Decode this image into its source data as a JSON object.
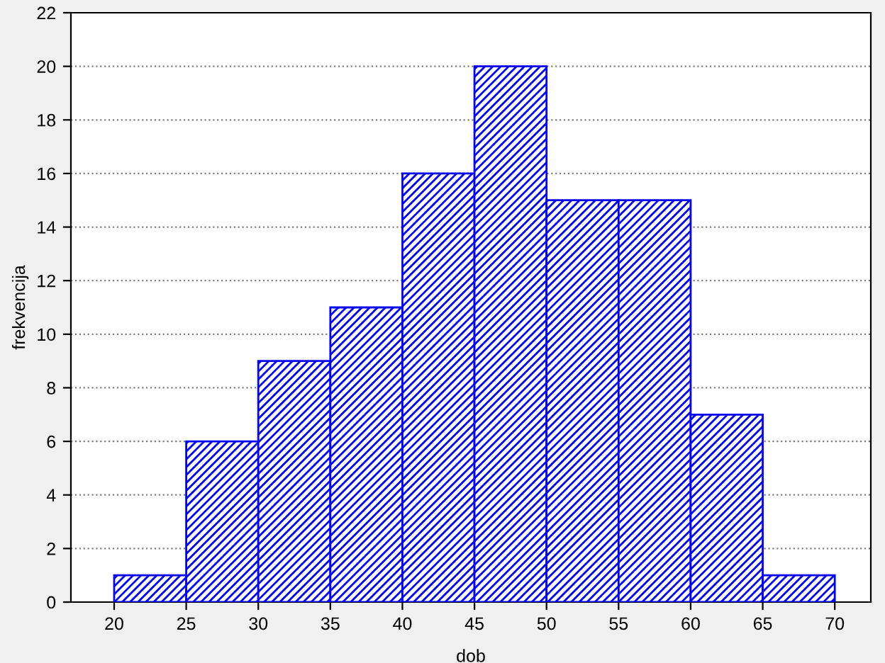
{
  "chart_data": {
    "type": "histogram",
    "xlabel": "dob",
    "ylabel": "frekvencija",
    "bins": [
      20,
      25,
      30,
      35,
      40,
      45,
      50,
      55,
      60,
      65,
      70
    ],
    "values": [
      1,
      6,
      9,
      11,
      16,
      20,
      15,
      15,
      7,
      1
    ],
    "color": "#0000ff",
    "xlim": [
      17,
      72.5
    ],
    "xticks": [
      20,
      25,
      30,
      35,
      40,
      45,
      50,
      55,
      60,
      65,
      70
    ],
    "ylim": [
      0,
      22
    ],
    "yticks": [
      0,
      2,
      4,
      6,
      8,
      10,
      12,
      14,
      16,
      18,
      20,
      22
    ],
    "grid": "y"
  }
}
